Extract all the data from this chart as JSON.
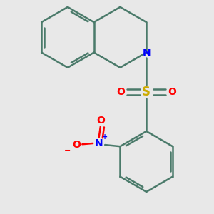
{
  "bg_color": "#e8e8e8",
  "bond_color": "#4a7a6a",
  "bond_width": 1.8,
  "dbo": 0.08,
  "n_color": "#0000ff",
  "s_color": "#ccaa00",
  "o_color": "#ff0000",
  "figsize": [
    3.0,
    3.0
  ],
  "dpi": 100,
  "xlim": [
    -3.5,
    3.5
  ],
  "ylim": [
    -3.8,
    3.2
  ]
}
